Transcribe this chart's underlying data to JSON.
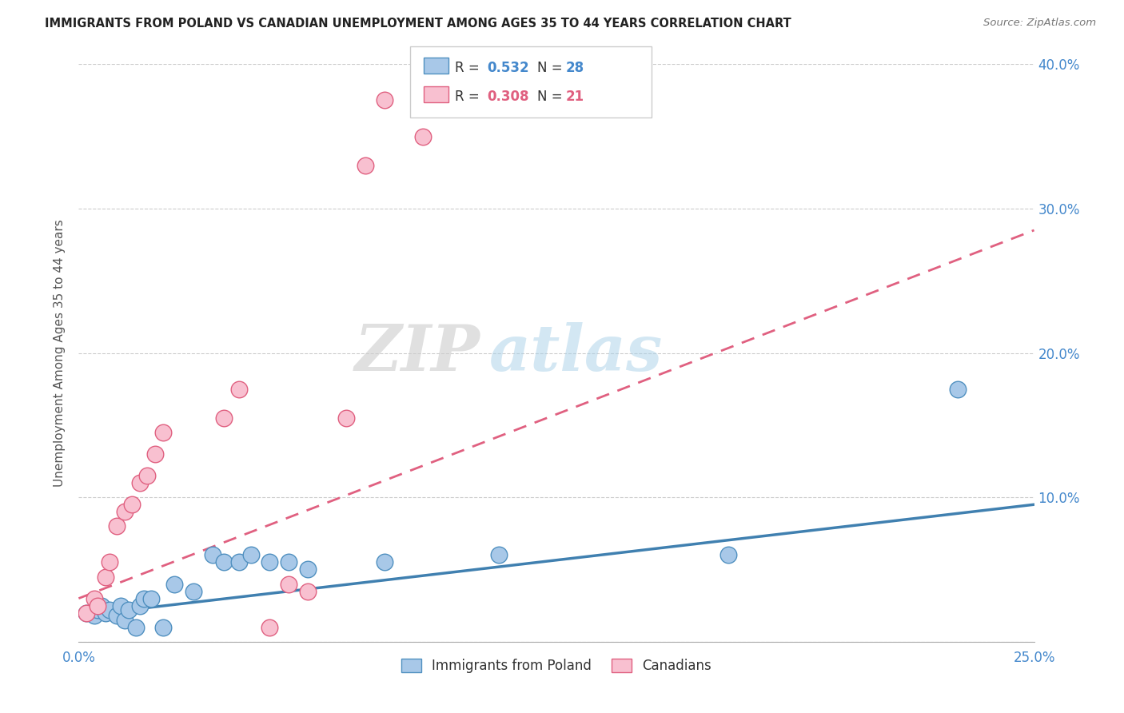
{
  "title": "IMMIGRANTS FROM POLAND VS CANADIAN UNEMPLOYMENT AMONG AGES 35 TO 44 YEARS CORRELATION CHART",
  "source": "Source: ZipAtlas.com",
  "ylabel": "Unemployment Among Ages 35 to 44 years",
  "xlim": [
    0.0,
    0.25
  ],
  "ylim": [
    0.0,
    0.4
  ],
  "xticks": [
    0.0,
    0.05,
    0.1,
    0.15,
    0.2,
    0.25
  ],
  "yticks_right": [
    0.0,
    0.1,
    0.2,
    0.3,
    0.4
  ],
  "ytick_labels_right": [
    "",
    "10.0%",
    "20.0%",
    "30.0%",
    "40.0%"
  ],
  "xtick_labels": [
    "0.0%",
    "",
    "",
    "",
    "",
    "25.0%"
  ],
  "legend_label_blue": "Immigrants from Poland",
  "legend_label_pink": "Canadians",
  "color_blue": "#a8c8e8",
  "color_pink": "#f8c0d0",
  "color_blue_edge": "#5090c0",
  "color_pink_edge": "#e06080",
  "color_blue_line": "#4080b0",
  "color_pink_line": "#e06080",
  "color_blue_text": "#4488cc",
  "color_pink_text": "#e06080",
  "watermark_zip": "ZIP",
  "watermark_atlas": "atlas",
  "blue_r": "0.532",
  "blue_n": "28",
  "pink_r": "0.308",
  "pink_n": "21",
  "blue_scatter_x": [
    0.002,
    0.004,
    0.005,
    0.006,
    0.007,
    0.008,
    0.01,
    0.011,
    0.012,
    0.013,
    0.015,
    0.016,
    0.017,
    0.019,
    0.022,
    0.025,
    0.03,
    0.035,
    0.038,
    0.042,
    0.045,
    0.05,
    0.055,
    0.06,
    0.08,
    0.11,
    0.17,
    0.23
  ],
  "blue_scatter_y": [
    0.02,
    0.018,
    0.022,
    0.025,
    0.02,
    0.022,
    0.018,
    0.025,
    0.015,
    0.022,
    0.01,
    0.025,
    0.03,
    0.03,
    0.01,
    0.04,
    0.035,
    0.06,
    0.055,
    0.055,
    0.06,
    0.055,
    0.055,
    0.05,
    0.055,
    0.06,
    0.06,
    0.175
  ],
  "pink_scatter_x": [
    0.002,
    0.004,
    0.005,
    0.007,
    0.008,
    0.01,
    0.012,
    0.014,
    0.016,
    0.018,
    0.02,
    0.022,
    0.038,
    0.042,
    0.05,
    0.055,
    0.06,
    0.07,
    0.075,
    0.08,
    0.09
  ],
  "pink_scatter_y": [
    0.02,
    0.03,
    0.025,
    0.045,
    0.055,
    0.08,
    0.09,
    0.095,
    0.11,
    0.115,
    0.13,
    0.145,
    0.155,
    0.175,
    0.01,
    0.04,
    0.035,
    0.155,
    0.33,
    0.375,
    0.35
  ],
  "blue_trend_x": [
    0.0,
    0.25
  ],
  "blue_trend_y": [
    0.018,
    0.095
  ],
  "pink_trend_x": [
    0.0,
    0.25
  ],
  "pink_trend_y": [
    0.03,
    0.285
  ]
}
